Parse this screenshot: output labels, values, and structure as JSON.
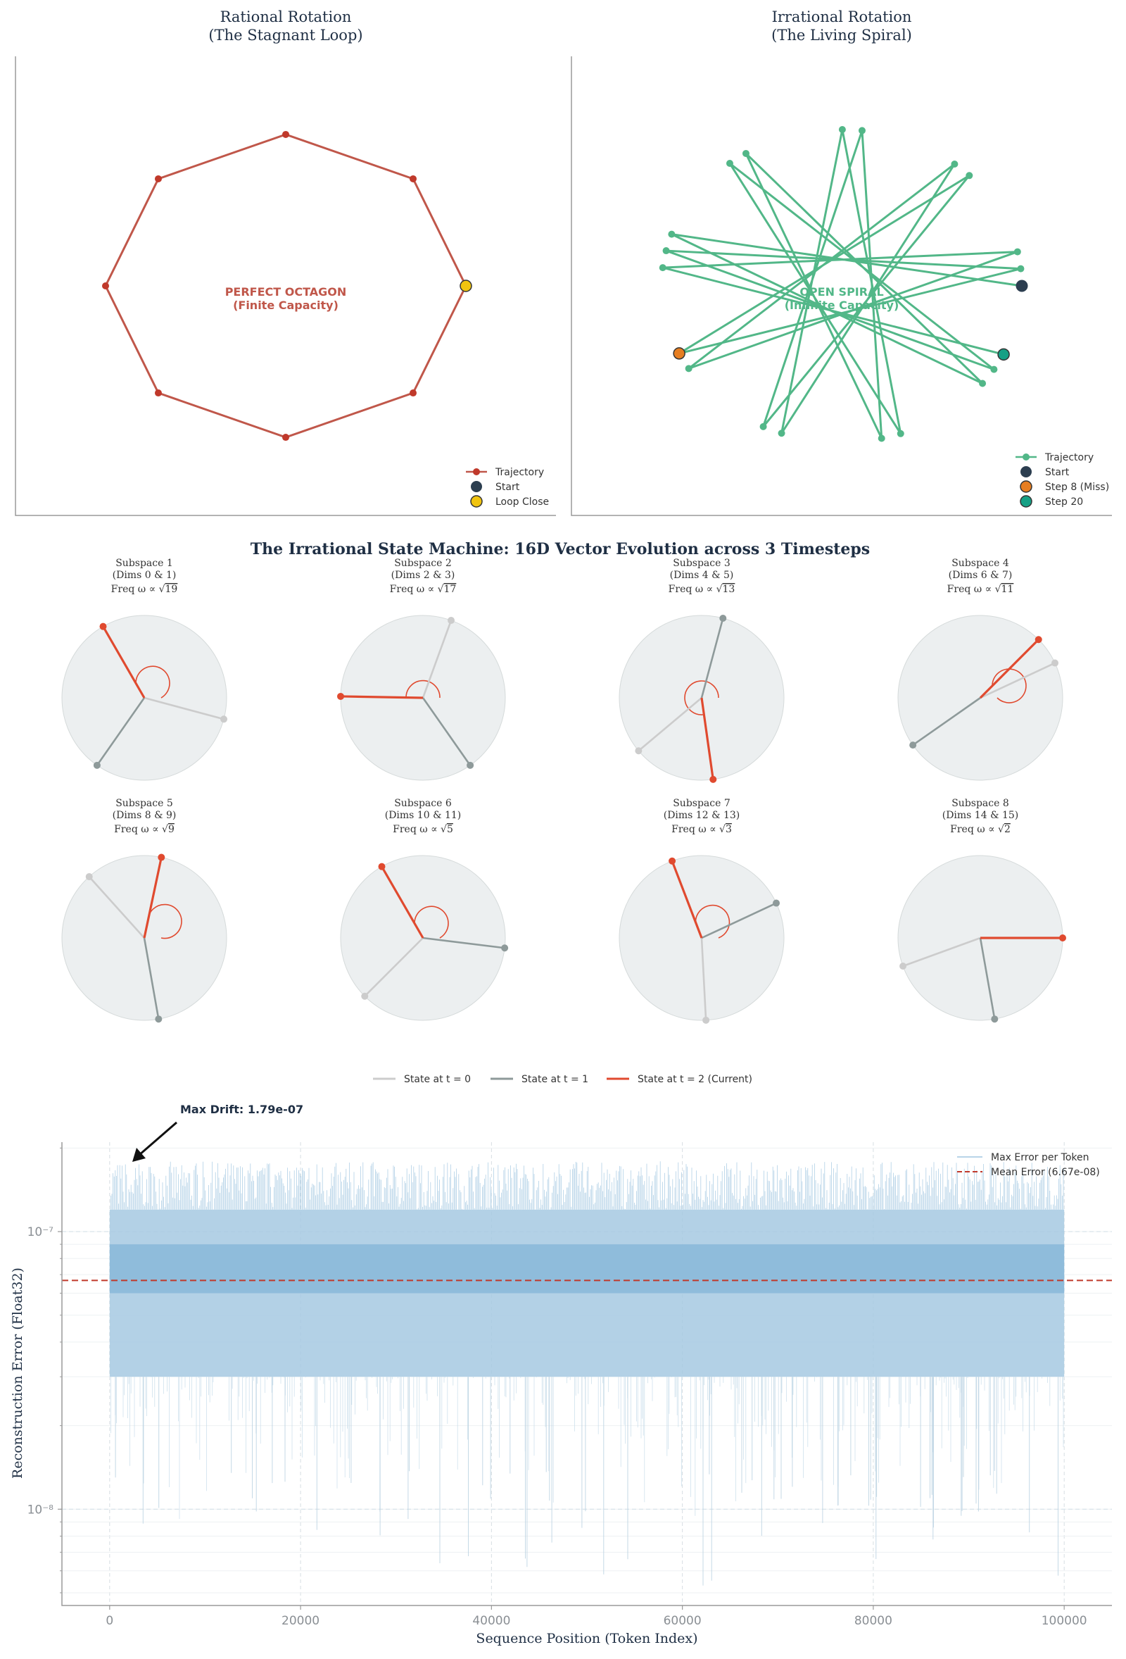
{
  "colors": {
    "rational": "#c0574a",
    "rational_point": "#c0392b",
    "irrational": "#52b788",
    "start": "#2c3e50",
    "loop_close": "#f1c40f",
    "miss": "#e67e22",
    "step20": "#16a085",
    "t0": "#cccccc",
    "t1": "#8e9a9a",
    "t2": "#e04a2f",
    "disc": "#eceff0",
    "title": "#1f2f44",
    "error_fill": "#8fbcdb",
    "mean": "#c0392b"
  },
  "chart_data": [
    {
      "type": "line",
      "panel": "rational",
      "title": "Rational Rotation",
      "subtitle": "(The Stagnant Loop)",
      "annotation_line1": "PERFECT OCTAGON",
      "annotation_line2": "(Finite Capacity)",
      "steps": 8,
      "angle_step_deg": 45,
      "start_angle_deg": 0,
      "legend": [
        "Trajectory",
        "Start",
        "Loop Close"
      ],
      "legend_position": "bottom-right"
    },
    {
      "type": "line",
      "panel": "irrational",
      "title": "Irrational Rotation",
      "subtitle": "(The Living Spiral)",
      "annotation_line1": "OPEN SPIRAL",
      "annotation_line2": "(Infinite Capacity)",
      "steps": 20,
      "angle_step_deg": 160.7,
      "start_angle_deg": 0,
      "miss_step": 8,
      "legend": [
        "Trajectory",
        "Start",
        "Step 8 (Miss)",
        "Step 20"
      ],
      "legend_position": "bottom-right"
    },
    {
      "type": "polar-vectors",
      "title": "The Irrational State Machine: 16D Vector Evolution across 3 Timesteps",
      "subspaces": [
        {
          "title": "Subspace 1",
          "dims": "(Dims 0 & 1)",
          "freq": "19",
          "angles_deg": [
            -15,
            -125,
            120
          ]
        },
        {
          "title": "Subspace 2",
          "dims": "(Dims 2 & 3)",
          "freq": "17",
          "angles_deg": [
            70,
            -55,
            179
          ]
        },
        {
          "title": "Subspace 3",
          "dims": "(Dims 4 & 5)",
          "freq": "13",
          "angles_deg": [
            -140,
            75,
            -82
          ]
        },
        {
          "title": "Subspace 4",
          "dims": "(Dims 6 & 7)",
          "freq": "11",
          "angles_deg": [
            25,
            -145,
            45
          ]
        },
        {
          "title": "Subspace 5",
          "dims": "(Dims 8 & 9)",
          "freq": "9",
          "angles_deg": [
            132,
            -80,
            78
          ]
        },
        {
          "title": "Subspace 6",
          "dims": "(Dims 10 & 11)",
          "freq": "5",
          "angles_deg": [
            -135,
            -7,
            120
          ]
        },
        {
          "title": "Subspace 7",
          "dims": "(Dims 12 & 13)",
          "freq": "3",
          "angles_deg": [
            -87,
            25,
            111
          ]
        },
        {
          "title": "Subspace 8",
          "dims": "(Dims 14 & 15)",
          "freq": "2",
          "angles_deg": [
            -160,
            -80,
            0
          ]
        }
      ],
      "freq_prefix": "Freq ω ∝",
      "legend": [
        "State at t = 0",
        "State at t = 1",
        "State at t = 2 (Current)"
      ],
      "legend_position": "bottom-center"
    },
    {
      "type": "area",
      "panel": "error",
      "xlabel": "Sequence Position (Token Index)",
      "ylabel": "Reconstruction Error (Float32)",
      "xlim": [
        -5000,
        105000
      ],
      "ylim": [
        4.5e-09,
        2.1e-07
      ],
      "yscale": "log",
      "xticks": [
        0,
        20000,
        40000,
        60000,
        80000,
        100000
      ],
      "yticks": [
        1e-08,
        1e-07
      ],
      "ytick_labels": [
        "10⁻⁸",
        "10⁻⁷"
      ],
      "band": {
        "x_range": [
          0,
          100000
        ],
        "dense_low": 3e-08,
        "dense_high": 1.2e-07,
        "core_low": 6e-08,
        "core_high": 9e-08,
        "spike_max": 1.79e-07
      },
      "mean_error": 6.67e-08,
      "max_drift_label": "Max Drift: 1.79e-07",
      "legend": [
        "Max Error per Token",
        "Mean Error (6.67e-08)"
      ],
      "legend_position": "top-right",
      "grid": true
    }
  ]
}
